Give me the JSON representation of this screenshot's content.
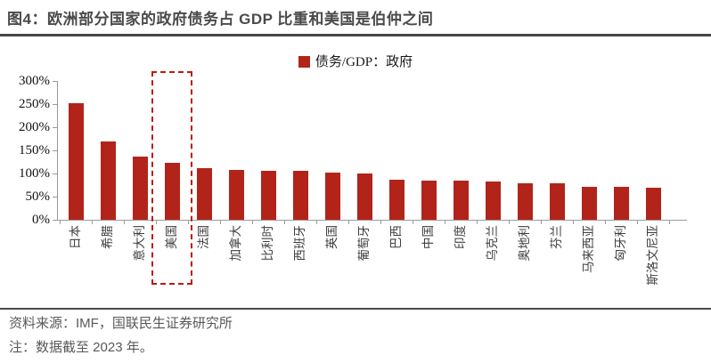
{
  "header": {
    "title": "图4：欧洲部分国家的政府债务占 GDP 比重和美国是伯仲之间"
  },
  "chart_data": {
    "type": "bar",
    "legend": "债务/GDP：政府",
    "categories": [
      "日本",
      "希腊",
      "意大利",
      "美国",
      "法国",
      "加拿大",
      "比利时",
      "西班牙",
      "英国",
      "葡萄牙",
      "巴西",
      "中国",
      "印度",
      "乌克兰",
      "奥地利",
      "芬兰",
      "马来西亚",
      "匈牙利",
      "斯洛文尼亚"
    ],
    "values": [
      252,
      170,
      137,
      124,
      111,
      108,
      106,
      105,
      102,
      100,
      86,
      85,
      84,
      83,
      79,
      78,
      72,
      71,
      70
    ],
    "unit": "% of GDP",
    "ylim": [
      0,
      300
    ],
    "ytick_step": 50,
    "ytick_labels": [
      "0%",
      "50%",
      "100%",
      "150%",
      "200%",
      "250%",
      "300%"
    ],
    "grid": false,
    "legend_position": "top-center",
    "xlabel_rotation": -90,
    "highlight_category": "美国",
    "colors": {
      "bar": "#B2241A",
      "highlight_box": "#BE1B10",
      "axis": "#9B9B9B"
    }
  },
  "footer": {
    "source": "资料来源：IMF，国联民生证券研究所",
    "note": "注：数据截至 2023 年。"
  }
}
